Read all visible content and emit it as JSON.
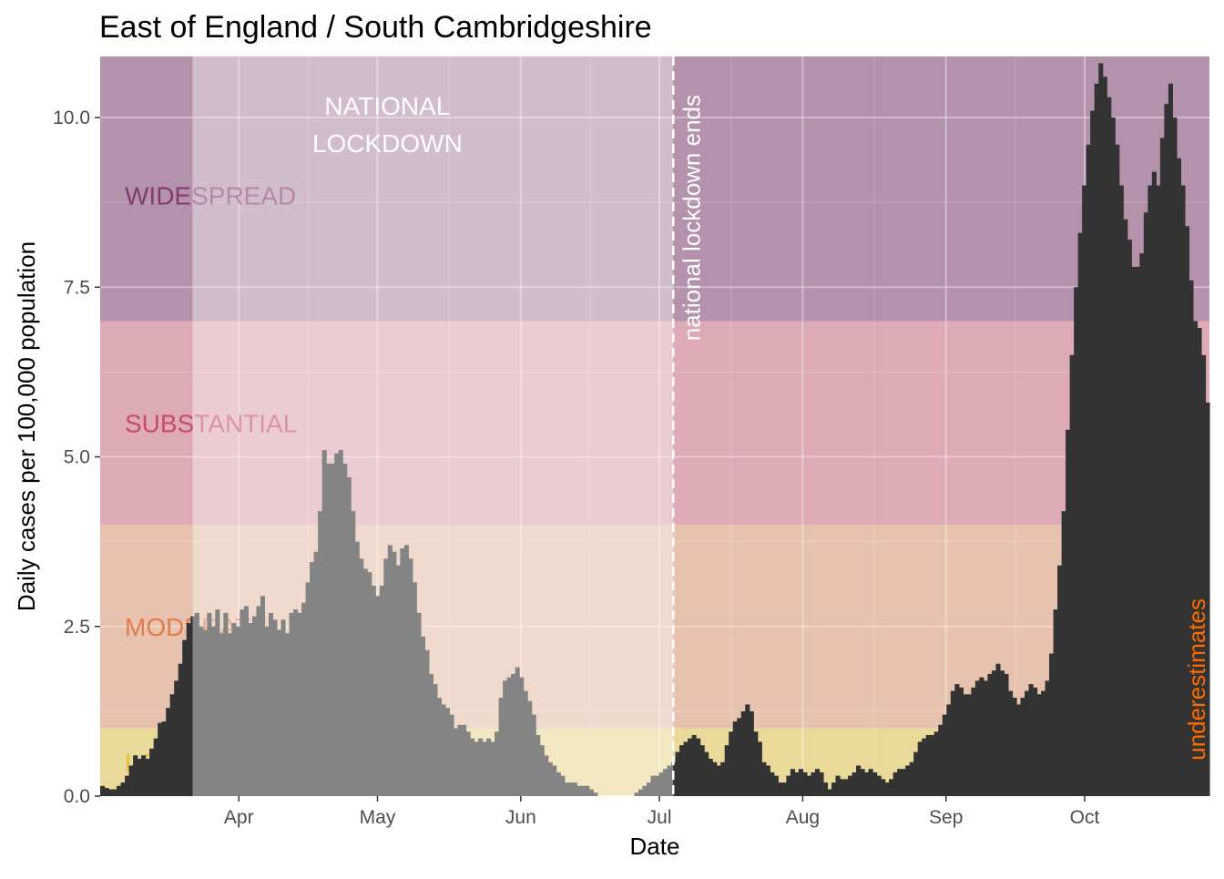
{
  "chart_data": {
    "type": "bar",
    "title": "East of England / South Cambridgeshire",
    "xlabel": "Date",
    "ylabel": "Daily cases per 100,000 population",
    "ylim": [
      0,
      10.9
    ],
    "x_range_days": [
      0,
      240
    ],
    "grid": true,
    "x_ticks": [
      {
        "label": "Apr",
        "day": 30
      },
      {
        "label": "May",
        "day": 60
      },
      {
        "label": "Jun",
        "day": 91
      },
      {
        "label": "Jul",
        "day": 121
      },
      {
        "label": "Aug",
        "day": 152
      },
      {
        "label": "Sep",
        "day": 183
      },
      {
        "label": "Oct",
        "day": 213
      }
    ],
    "y_ticks": [
      0,
      2.5,
      5.0,
      7.5,
      10.0
    ],
    "y_tick_labels": [
      "0.0",
      "2.5",
      "5.0",
      "7.5",
      "10.0"
    ],
    "bands": [
      {
        "label": "LOW",
        "from": 0,
        "to": 1,
        "color": "#e8c94a"
      },
      {
        "label": "MODERATE",
        "from": 1,
        "to": 4,
        "color": "#e39a72"
      },
      {
        "label": "SUBSTANTIAL",
        "from": 4,
        "to": 7,
        "color": "#d06a80"
      },
      {
        "label": "WIDESPREAD",
        "from": 7,
        "to": 10.9,
        "color": "#7e3a6e"
      }
    ],
    "band_label_colors": [
      "#e8b828",
      "#e0703a",
      "#c23d5a",
      "#7a2a60"
    ],
    "lockdown": {
      "label_line1": "NATIONAL",
      "label_line2": "LOCKDOWN",
      "start_day": 20,
      "end_day": 124
    },
    "lockdown_end": {
      "label": "national lockdown ends",
      "day": 124
    },
    "annotation": {
      "label": "underestimates",
      "color": "#ff6a00"
    },
    "bar_color": "#333333",
    "values": [
      0.15,
      0.12,
      0.1,
      0.1,
      0.15,
      0.2,
      0.3,
      0.45,
      0.6,
      0.55,
      0.6,
      0.55,
      0.7,
      0.85,
      1.08,
      1.1,
      1.3,
      1.5,
      1.7,
      1.95,
      2.3,
      2.55,
      2.65,
      2.7,
      2.5,
      2.45,
      2.7,
      2.5,
      2.75,
      2.4,
      2.7,
      2.4,
      2.55,
      2.5,
      2.75,
      2.8,
      2.55,
      2.65,
      2.8,
      2.95,
      2.5,
      2.7,
      2.6,
      2.45,
      2.6,
      2.4,
      2.7,
      2.75,
      2.7,
      2.85,
      3.15,
      3.45,
      3.6,
      4.2,
      5.1,
      4.9,
      4.9,
      5.05,
      5.1,
      4.9,
      4.7,
      4.2,
      3.75,
      3.5,
      3.35,
      3.3,
      3.1,
      2.95,
      3.1,
      3.5,
      3.7,
      3.6,
      3.4,
      3.65,
      3.7,
      3.5,
      3.15,
      2.7,
      2.35,
      2.15,
      1.8,
      1.65,
      1.45,
      1.35,
      1.3,
      1.2,
      1.0,
      1.05,
      1.05,
      0.95,
      0.85,
      0.8,
      0.85,
      0.8,
      0.85,
      0.8,
      0.95,
      1.45,
      1.7,
      1.75,
      1.8,
      1.9,
      1.75,
      1.55,
      1.4,
      1.2,
      0.9,
      0.75,
      0.6,
      0.5,
      0.45,
      0.35,
      0.3,
      0.2,
      0.2,
      0.2,
      0.15,
      0.15,
      0.15,
      0.1,
      0.05,
      0.0,
      0.0,
      0.0,
      0.0,
      0.0,
      0.0,
      0.0,
      0.0,
      0.0,
      0.05,
      0.1,
      0.15,
      0.2,
      0.3,
      0.3,
      0.35,
      0.4,
      0.45,
      0.5,
      0.65,
      0.75,
      0.8,
      0.85,
      0.9,
      0.85,
      0.75,
      0.65,
      0.55,
      0.5,
      0.45,
      0.5,
      0.75,
      0.95,
      1.1,
      1.15,
      1.25,
      1.35,
      1.25,
      0.95,
      0.8,
      0.5,
      0.45,
      0.35,
      0.3,
      0.2,
      0.2,
      0.3,
      0.4,
      0.35,
      0.4,
      0.35,
      0.3,
      0.35,
      0.4,
      0.35,
      0.2,
      0.1,
      0.2,
      0.3,
      0.25,
      0.25,
      0.3,
      0.35,
      0.45,
      0.4,
      0.35,
      0.4,
      0.35,
      0.3,
      0.25,
      0.2,
      0.25,
      0.35,
      0.4,
      0.4,
      0.45,
      0.5,
      0.65,
      0.8,
      0.85,
      0.9,
      0.9,
      0.95,
      1.05,
      1.2,
      1.35,
      1.55,
      1.65,
      1.6,
      1.5,
      1.5,
      1.6,
      1.7,
      1.75,
      1.7,
      1.8,
      1.85,
      1.95,
      1.85,
      1.8,
      1.55,
      1.45,
      1.35,
      1.45,
      1.55,
      1.65,
      1.6,
      1.5,
      1.55,
      1.7,
      2.1,
      2.75,
      3.4,
      4.2,
      5.4,
      6.5,
      7.5,
      8.3,
      9.0,
      9.6,
      10.1,
      10.5,
      10.8,
      10.6,
      10.3,
      10.0,
      9.6,
      9.0,
      8.5,
      8.2,
      7.8,
      7.8,
      8.0,
      8.6,
      9.0,
      9.2,
      9.0,
      9.7,
      10.2,
      10.5,
      10.0,
      9.4,
      9.0,
      8.4,
      7.6,
      7.0,
      6.9,
      6.5,
      5.8
    ]
  }
}
